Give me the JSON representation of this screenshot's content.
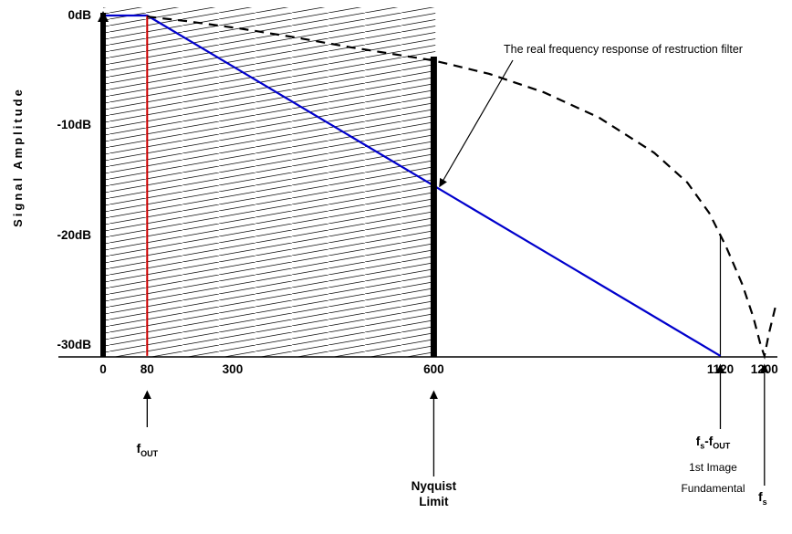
{
  "chart_data": {
    "type": "line",
    "title": "",
    "ylabel": "Signal Amplitude",
    "xlabel": "",
    "xlim": [
      0,
      1230
    ],
    "ylim": [
      -31,
      0
    ],
    "grid": false,
    "x_ticks": [
      {
        "label": "0",
        "value": 0
      },
      {
        "label": "80",
        "value": 80
      },
      {
        "label": "300",
        "value": 300,
        "pos": 235
      },
      {
        "label": "600",
        "value": 600
      },
      {
        "label": "1120",
        "value": 1120
      },
      {
        "label": "1200",
        "value": 1200
      }
    ],
    "y_ticks": [
      {
        "label": "0dB",
        "value": 0
      },
      {
        "label": "-10dB",
        "value": -10
      },
      {
        "label": "-20dB",
        "value": -20
      },
      {
        "label": "-30dB",
        "value": -30
      }
    ],
    "nyquist_band": {
      "from": 0,
      "to": 603
    },
    "axis_bars_x": [
      0,
      600
    ],
    "dropline": {
      "x": 1120,
      "from_db": -20
    },
    "series": [
      {
        "name": "ideal-attenuation-line",
        "color": "#0000cc",
        "width": 2.2,
        "points": [
          [
            0,
            0
          ],
          [
            80,
            0
          ],
          [
            1120,
            -31
          ]
        ]
      },
      {
        "name": "output-fundamental-tone",
        "color": "#cc0000",
        "width": 2,
        "points": [
          [
            80,
            0
          ],
          [
            80,
            -31
          ]
        ]
      },
      {
        "name": "real-filter-response",
        "color": "#000000",
        "width": 2.2,
        "dash": "10 7",
        "points": [
          [
            80,
            -0.1
          ],
          [
            150,
            -0.5
          ],
          [
            250,
            -1.2
          ],
          [
            350,
            -2.0
          ],
          [
            450,
            -2.9
          ],
          [
            550,
            -3.7
          ],
          [
            600,
            -4.1
          ],
          [
            700,
            -5.3
          ],
          [
            800,
            -7.0
          ],
          [
            900,
            -9.3
          ],
          [
            1000,
            -12.5
          ],
          [
            1060,
            -15.2
          ],
          [
            1100,
            -18.0
          ],
          [
            1130,
            -21.0
          ],
          [
            1160,
            -24.5
          ],
          [
            1180,
            -27.5
          ],
          [
            1193,
            -30.0
          ],
          [
            1200,
            -31.0
          ],
          [
            1208,
            -29.0
          ],
          [
            1220,
            -26.5
          ]
        ]
      }
    ],
    "annotation": {
      "text": "The real frequency response of restruction filter"
    },
    "markers_below": {
      "fout": {
        "x": 80,
        "base": "f",
        "sub": "OUT"
      },
      "nyquist": {
        "x": 600,
        "line1": "Nyquist",
        "line2": "Limit"
      },
      "first_image": {
        "x": 1120,
        "f1": "f",
        "s1": "s",
        "f2": "-f",
        "s2": "OUT",
        "line2": "1st Image",
        "line3": "Fundamental"
      },
      "fs": {
        "x": 1200,
        "base": "f",
        "sub": "s"
      }
    }
  }
}
